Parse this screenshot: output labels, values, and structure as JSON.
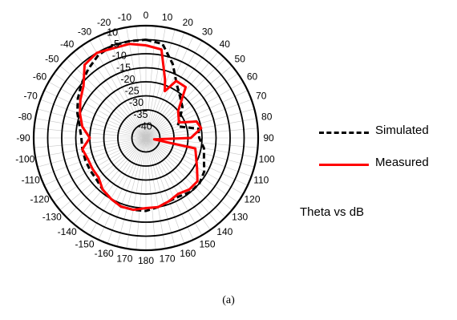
{
  "chart_data": {
    "type": "polar",
    "title": "",
    "annotation": "Theta vs dB",
    "caption": "(a)",
    "angle_unit": "deg",
    "angle_labels_right": [
      "0",
      "10",
      "20",
      "30",
      "40",
      "50",
      "60",
      "70",
      "80",
      "90",
      "100",
      "110",
      "120",
      "130",
      "140",
      "150",
      "160",
      "170",
      "180"
    ],
    "angle_labels_left": [
      "-10",
      "-20",
      "-30",
      "-40",
      "-50",
      "-60",
      "-70",
      "-80",
      "-90",
      "-100",
      "-110",
      "-120",
      "-130",
      "-140",
      "-150",
      "-160",
      "170"
    ],
    "radial_labels": [
      "-10",
      "-5",
      "-10",
      "-15",
      "-20",
      "-25",
      "-30",
      "-35",
      "-40"
    ],
    "radial_range": [
      -40,
      0
    ],
    "radial_step": 5,
    "grid": true,
    "legend": {
      "placement": "right"
    },
    "series": [
      {
        "name": "Simulated",
        "style": "dashed",
        "color": "#000000",
        "points": [
          [
            0,
            -5
          ],
          [
            10,
            -6
          ],
          [
            20,
            -12
          ],
          [
            30,
            -18
          ],
          [
            40,
            -21
          ],
          [
            50,
            -23
          ],
          [
            60,
            -26
          ],
          [
            70,
            -28
          ],
          [
            80,
            -21
          ],
          [
            90,
            -21
          ],
          [
            100,
            -19
          ],
          [
            110,
            -18
          ],
          [
            120,
            -16
          ],
          [
            130,
            -15
          ],
          [
            140,
            -15
          ],
          [
            150,
            -16
          ],
          [
            160,
            -16
          ],
          [
            170,
            -15
          ],
          [
            180,
            -14
          ],
          [
            -170,
            -14
          ],
          [
            -160,
            -14
          ],
          [
            -150,
            -15
          ],
          [
            -140,
            -16
          ],
          [
            -130,
            -17
          ],
          [
            -120,
            -17
          ],
          [
            -110,
            -17
          ],
          [
            -100,
            -17
          ],
          [
            -90,
            -17
          ],
          [
            -80,
            -16
          ],
          [
            -70,
            -14
          ],
          [
            -60,
            -12
          ],
          [
            -50,
            -10
          ],
          [
            -40,
            -8
          ],
          [
            -30,
            -6
          ],
          [
            -20,
            -5
          ],
          [
            -10,
            -5
          ],
          [
            0,
            -5
          ]
        ]
      },
      {
        "name": "Measured",
        "style": "solid",
        "color": "#ff0000",
        "points": [
          [
            0,
            -7
          ],
          [
            10,
            -8
          ],
          [
            18,
            -18
          ],
          [
            22,
            -22
          ],
          [
            28,
            -17
          ],
          [
            38,
            -17
          ],
          [
            50,
            -25
          ],
          [
            65,
            -27
          ],
          [
            72,
            -21
          ],
          [
            80,
            -20
          ],
          [
            90,
            -24
          ],
          [
            100,
            -37
          ],
          [
            102,
            -22
          ],
          [
            110,
            -21
          ],
          [
            120,
            -19
          ],
          [
            130,
            -16
          ],
          [
            140,
            -16
          ],
          [
            150,
            -17
          ],
          [
            160,
            -16
          ],
          [
            170,
            -15
          ],
          [
            180,
            -15
          ],
          [
            -170,
            -14
          ],
          [
            -160,
            -14
          ],
          [
            -150,
            -15
          ],
          [
            -140,
            -16
          ],
          [
            -130,
            -18
          ],
          [
            -120,
            -18
          ],
          [
            -110,
            -18
          ],
          [
            -100,
            -17
          ],
          [
            -90,
            -20
          ],
          [
            -80,
            -17
          ],
          [
            -70,
            -15
          ],
          [
            -60,
            -13
          ],
          [
            -50,
            -11
          ],
          [
            -40,
            -6
          ],
          [
            -30,
            -5
          ],
          [
            -20,
            -6
          ],
          [
            -10,
            -6
          ],
          [
            0,
            -7
          ]
        ]
      }
    ]
  }
}
